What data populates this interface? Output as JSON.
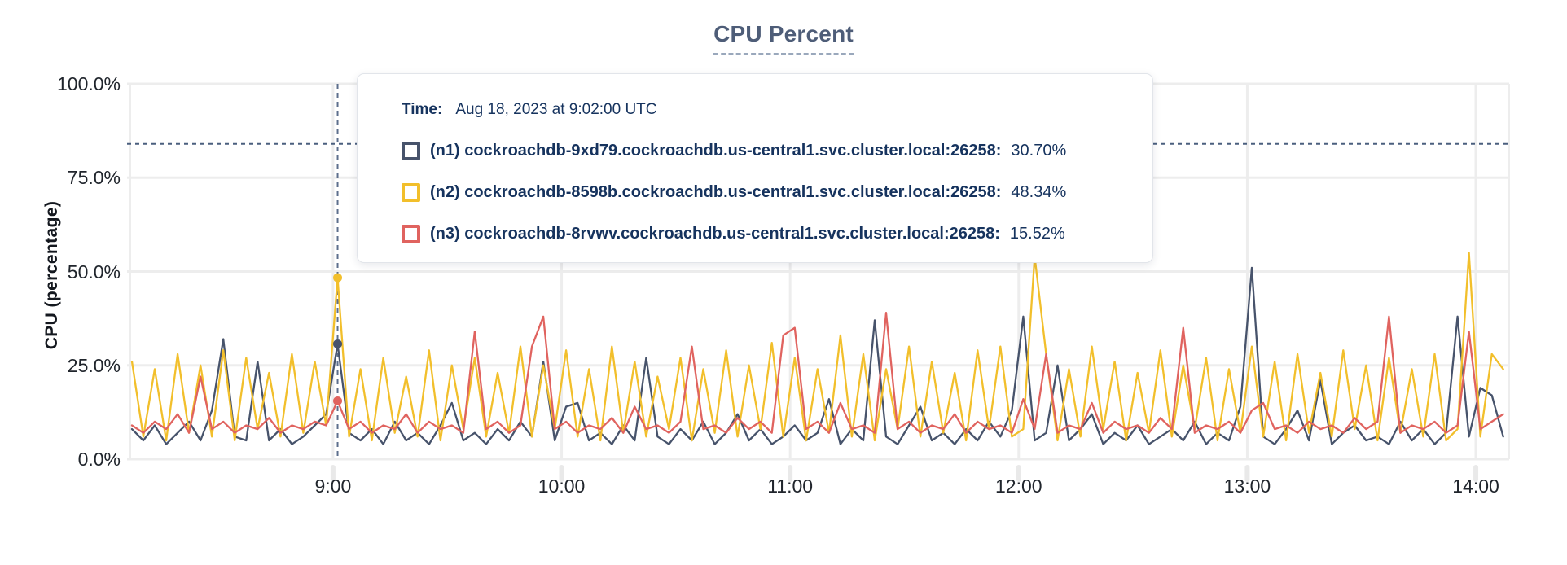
{
  "header": {
    "title": "CPU Percent"
  },
  "tooltip": {
    "time_label": "Time:",
    "time_value": "Aug 18, 2023 at 9:02:00 UTC",
    "rows": [
      {
        "name": "(n1) cockroachdb-9xd79.cockroachdb.us-central1.svc.cluster.local:26258:",
        "value": "30.70%"
      },
      {
        "name": "(n2) cockroachdb-8598b.cockroachdb.us-central1.svc.cluster.local:26258:",
        "value": "48.34%"
      },
      {
        "name": "(n3) cockroachdb-8rvwv.cockroachdb.us-central1.svc.cluster.local:26258:",
        "value": "15.52%"
      }
    ]
  },
  "chart_data": {
    "type": "line",
    "title": "CPU Percent",
    "xlabel": "",
    "ylabel": "CPU (percentage)",
    "ylim": [
      0,
      100
    ],
    "grid": true,
    "legend_position": "tooltip",
    "x_range_hours": [
      8.113,
      14.146
    ],
    "y_ticks": [
      {
        "value": 0,
        "label": "0.0%"
      },
      {
        "value": 25,
        "label": "25.0%"
      },
      {
        "value": 50,
        "label": "50.0%"
      },
      {
        "value": 75,
        "label": "75.0%"
      },
      {
        "value": 100,
        "label": "100.0%"
      }
    ],
    "x_ticks": [
      {
        "hour": 9,
        "label": "9:00"
      },
      {
        "hour": 10,
        "label": "10:00"
      },
      {
        "hour": 11,
        "label": "11:00"
      },
      {
        "hour": 12,
        "label": "12:00"
      },
      {
        "hour": 13,
        "label": "13:00"
      },
      {
        "hour": 14,
        "label": "14:00"
      }
    ],
    "threshold_percent": 84,
    "hover": {
      "hour": 9.02,
      "index": 18,
      "time": "Aug 18, 2023 at 9:02:00 UTC"
    },
    "series": [
      {
        "id": "n1",
        "name": "cockroachdb-9xd79.cockroachdb.us-central1.svc.cluster.local:26258",
        "color": "#47536b",
        "hover_value": 30.7,
        "x_start": 8.12,
        "x_step": 0.05,
        "values": [
          8,
          5,
          9,
          4,
          7,
          10,
          5,
          13,
          32,
          6,
          5,
          26,
          5,
          8,
          4,
          6,
          9,
          12,
          30.7,
          7,
          5,
          8,
          4,
          10,
          5,
          7,
          4,
          9,
          15,
          5,
          7,
          4,
          8,
          5,
          10,
          6,
          26,
          5,
          14,
          15,
          5,
          7,
          4,
          9,
          5,
          27,
          6,
          4,
          8,
          5,
          10,
          4,
          7,
          12,
          5,
          8,
          4,
          6,
          9,
          5,
          7,
          16,
          4,
          8,
          5,
          37,
          6,
          4,
          9,
          14,
          5,
          7,
          4,
          8,
          5,
          10,
          6,
          13,
          38,
          5,
          7,
          25,
          5,
          8,
          12,
          4,
          7,
          5,
          9,
          4,
          6,
          8,
          5,
          10,
          4,
          7,
          5,
          14,
          51,
          6,
          4,
          8,
          13,
          5,
          21,
          4,
          7,
          9,
          5,
          6,
          4,
          10,
          5,
          8,
          4,
          7,
          38,
          6,
          19,
          17,
          6
        ]
      },
      {
        "id": "n2",
        "name": "cockroachdb-8598b.cockroachdb.us-central1.svc.cluster.local:26258",
        "color": "#f2bf2b",
        "hover_value": 48.34,
        "x_start": 8.12,
        "x_step": 0.05,
        "values": [
          26,
          6,
          24,
          5,
          28,
          7,
          25,
          6,
          29,
          5,
          27,
          8,
          23,
          6,
          28,
          7,
          26,
          9,
          48.34,
          6,
          24,
          5,
          27,
          7,
          22,
          6,
          29,
          5,
          25,
          8,
          27,
          6,
          23,
          7,
          30,
          6,
          25,
          8,
          29,
          6,
          24,
          5,
          30,
          7,
          26,
          6,
          22,
          8,
          27,
          5,
          24,
          7,
          29,
          6,
          25,
          8,
          31,
          6,
          27,
          5,
          24,
          7,
          33,
          6,
          28,
          5,
          24,
          8,
          30,
          6,
          26,
          7,
          23,
          5,
          29,
          8,
          30,
          6,
          8,
          54,
          28,
          5,
          24,
          6,
          30,
          8,
          26,
          5,
          23,
          7,
          29,
          6,
          25,
          8,
          27,
          5,
          24,
          7,
          30,
          6,
          26,
          5,
          28,
          7,
          23,
          6,
          29,
          8,
          25,
          5,
          27,
          7,
          24,
          6,
          28,
          5,
          8,
          55,
          6,
          28,
          24
        ]
      },
      {
        "id": "n3",
        "name": "cockroachdb-8rvwv.cockroachdb.us-central1.svc.cluster.local:26258",
        "color": "#e0635f",
        "hover_value": 15.52,
        "x_start": 8.12,
        "x_step": 0.05,
        "values": [
          9,
          7,
          10,
          8,
          12,
          7,
          22,
          8,
          10,
          7,
          9,
          8,
          11,
          7,
          9,
          8,
          10,
          9,
          15.52,
          8,
          10,
          7,
          9,
          8,
          12,
          7,
          10,
          8,
          9,
          7,
          34,
          8,
          10,
          7,
          9,
          30,
          38,
          8,
          10,
          7,
          9,
          8,
          11,
          7,
          14,
          8,
          9,
          7,
          10,
          30,
          8,
          9,
          7,
          11,
          8,
          10,
          7,
          33,
          35,
          8,
          10,
          7,
          15,
          8,
          9,
          7,
          39,
          8,
          10,
          7,
          9,
          8,
          12,
          7,
          10,
          8,
          9,
          7,
          16,
          8,
          28,
          7,
          9,
          8,
          15,
          7,
          10,
          8,
          9,
          7,
          11,
          8,
          35,
          7,
          9,
          8,
          10,
          7,
          13,
          15,
          8,
          9,
          7,
          10,
          8,
          9,
          7,
          11,
          8,
          10,
          38,
          7,
          9,
          8,
          10,
          7,
          9,
          34,
          8,
          10,
          12
        ]
      }
    ],
    "colors": {
      "grid": "#ededed",
      "threshold_line": "#4a5f7e",
      "hover_line": "#5c6e8c",
      "title": "#4e5d78",
      "tooltip_text": "#16335e",
      "axis_text": "#20252c"
    }
  }
}
